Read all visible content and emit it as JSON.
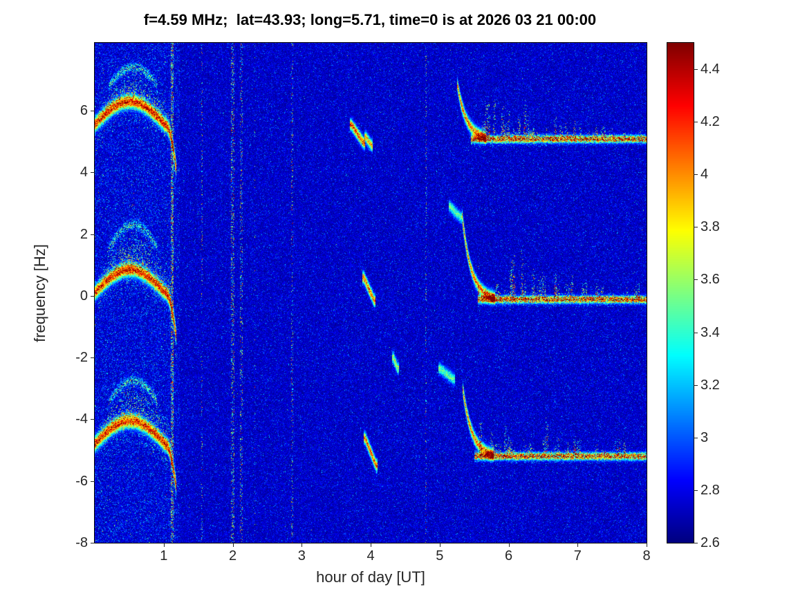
{
  "title": "f=4.59 MHz;  lat=43.93; long=5.71, time=0 is at 2026 03 21 00:00",
  "axes": {
    "xlabel": "hour of day [UT]",
    "ylabel": "frequency [Hz]",
    "xlim": [
      0,
      8
    ],
    "ylim": [
      -8,
      8.2
    ],
    "xticks": [
      1,
      2,
      3,
      4,
      5,
      6,
      7,
      8
    ],
    "yticks": [
      6,
      4,
      2,
      0,
      -2,
      -4,
      -6,
      -8
    ]
  },
  "colorbar": {
    "min": 2.6,
    "max": 4.5,
    "ticks": [
      4.4,
      4.2,
      4,
      3.8,
      3.6,
      3.4,
      3.2,
      3,
      2.8,
      2.6
    ]
  },
  "chart_data": {
    "type": "heatmap",
    "colormap": "jet",
    "value_range": [
      2.6,
      4.5
    ],
    "x_range_hours": [
      0,
      8
    ],
    "y_range_hz": [
      -8,
      8.2
    ],
    "background_level": 2.65,
    "description": "Doppler spectrogram: three spectral bands (near +6, 0 and -4.5 Hz) with arched ridges and cyan scatter clouds during 0-1.2 UT, vertical interference speckle lines, isolated chirp events near 3.7-4.1 UT, and after ~5.3 UT descending chirps settling onto horizontal traces near +5.1, -0.1 and -5.2 Hz with spiky scatter above each trace until 8 UT.",
    "early_bands": [
      {
        "ridge_hz": 5.9,
        "cloud_top_hz": 7.6,
        "t_end": 1.18
      },
      {
        "ridge_hz": 0.45,
        "cloud_top_hz": 2.6,
        "t_end": 1.18
      },
      {
        "ridge_hz": -4.45,
        "cloud_top_hz": -2.5,
        "t_end": 1.18
      }
    ],
    "interference_lines": [
      {
        "t": 1.12,
        "width": 0.04,
        "density": 0.45
      },
      {
        "t": 1.55,
        "width": 0.02,
        "density": 0.12
      },
      {
        "t": 2.0,
        "width": 0.05,
        "density": 0.22
      },
      {
        "t": 2.13,
        "width": 0.04,
        "density": 0.17
      },
      {
        "t": 2.32,
        "width": 0.015,
        "density": 0.07
      },
      {
        "t": 2.86,
        "width": 0.025,
        "density": 0.14
      },
      {
        "t": 4.8,
        "width": 0.02,
        "density": 0.12
      }
    ],
    "mid_events": [
      {
        "t1": 3.72,
        "f1": 5.55,
        "t2": 3.9,
        "f2": 4.95,
        "strength": 1.8
      },
      {
        "t1": 3.93,
        "f1": 5.15,
        "t2": 4.01,
        "f2": 4.88,
        "strength": 1.5
      },
      {
        "t1": 3.9,
        "f1": 0.6,
        "t2": 4.05,
        "f2": -0.15,
        "strength": 1.8
      },
      {
        "t1": 3.92,
        "f1": -4.6,
        "t2": 4.08,
        "f2": -5.5,
        "strength": 1.8
      },
      {
        "t1": 4.33,
        "f1": -2.0,
        "t2": 4.39,
        "f2": -2.35,
        "strength": 1.2
      },
      {
        "t1": 5.0,
        "f1": -2.35,
        "t2": 5.2,
        "f2": -2.7,
        "strength": 1.0
      },
      {
        "t1": 5.15,
        "f1": 2.9,
        "t2": 5.3,
        "f2": 2.55,
        "strength": 1.0
      }
    ],
    "late_bands": [
      {
        "line_hz": 5.08,
        "line_t_start": 5.45,
        "descent_t_start": 5.25,
        "descent_top_hz": 6.95,
        "spike_max_hz": 1.5
      },
      {
        "line_hz": -0.12,
        "line_t_start": 5.55,
        "descent_t_start": 5.32,
        "descent_top_hz": 2.75,
        "spike_max_hz": 2.0
      },
      {
        "line_hz": -5.2,
        "line_t_start": 5.5,
        "descent_t_start": 5.33,
        "descent_top_hz": -2.9,
        "spike_max_hz": 1.7
      }
    ]
  }
}
